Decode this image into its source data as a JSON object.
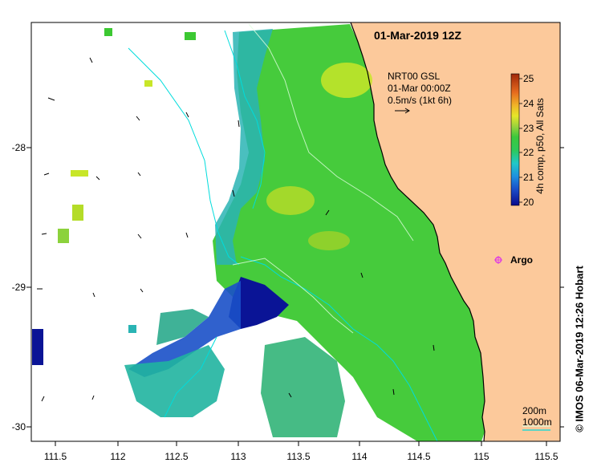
{
  "title": "01-Mar-2019 12Z",
  "product": {
    "line1": "NRT00 GSL",
    "line2": "01-Mar 00:00Z",
    "line3": "0.5m/s (1kt 6h)"
  },
  "colorbar": {
    "label": "4h comp, p50, All Sats",
    "ticks": [
      "25",
      "24",
      "23",
      "22",
      "21",
      "20"
    ],
    "min": 20,
    "max": 25
  },
  "axes": {
    "x_ticks": [
      "111.5",
      "112",
      "112.5",
      "113",
      "113.5",
      "114",
      "114.5",
      "115",
      "115.5"
    ],
    "y_ticks": [
      "-28",
      "-29",
      "-30"
    ],
    "x_range": [
      111.3,
      115.7
    ],
    "y_range": [
      -30.1,
      -27.1
    ]
  },
  "argo": {
    "label": "Argo",
    "lon": 115.07,
    "lat": -28.82
  },
  "scale": {
    "label_200": "200m",
    "label_1000": "1000m"
  },
  "credit": "© IMOS 06-Mar-2019 12:26 Hobart",
  "colors": {
    "land": "#fcc99b",
    "river": "#00dcdc",
    "coast": "#000000",
    "argo": "#e040e0"
  }
}
